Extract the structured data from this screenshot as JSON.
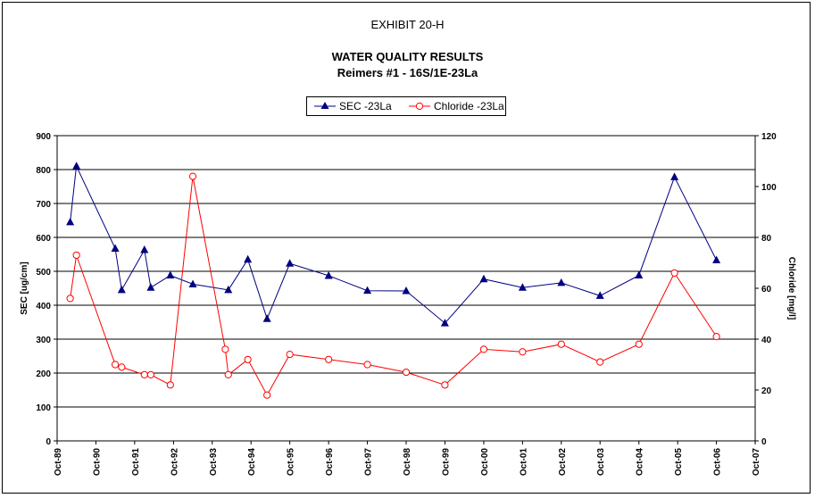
{
  "header": {
    "exhibit": "EXHIBIT 20-H",
    "title_line1": "WATER QUALITY RESULTS",
    "title_line2": "Reimers #1 - 16S/1E-23La"
  },
  "colors": {
    "sec": "#000080",
    "chloride": "#ff0000",
    "grid": "#000000"
  },
  "chart_data": {
    "type": "line",
    "legend_position": "top-center",
    "grid": "horizontal major gridlines",
    "x_axis": {
      "type": "date",
      "min": "1989-10-01",
      "max": "2007-10-01",
      "tick_labels": [
        "Oct-89",
        "Oct-90",
        "Oct-91",
        "Oct-92",
        "Oct-93",
        "Oct-94",
        "Oct-95",
        "Oct-96",
        "Oct-97",
        "Oct-98",
        "Oct-99",
        "Oct-00",
        "Oct-01",
        "Oct-02",
        "Oct-03",
        "Oct-04",
        "Oct-05",
        "Oct-06",
        "Oct-07"
      ]
    },
    "y_axis_left": {
      "label": "SEC [ug/cm]",
      "min": 0,
      "max": 900,
      "ticks": [
        0,
        100,
        200,
        300,
        400,
        500,
        600,
        700,
        800,
        900
      ]
    },
    "y_axis_right": {
      "label": "Chloride [mg/l]",
      "min": 0,
      "max": 120,
      "ticks": [
        0,
        20,
        40,
        60,
        80,
        100,
        120
      ]
    },
    "series": [
      {
        "name": "SEC -23La",
        "axis": "left",
        "marker": "triangle",
        "points": [
          {
            "x": "1990-02-01",
            "y": 645
          },
          {
            "x": "1990-04-01",
            "y": 810
          },
          {
            "x": "1991-04-01",
            "y": 567
          },
          {
            "x": "1991-06-01",
            "y": 445
          },
          {
            "x": "1992-01-01",
            "y": 563
          },
          {
            "x": "1992-03-01",
            "y": 452
          },
          {
            "x": "1992-09-01",
            "y": 488
          },
          {
            "x": "1993-04-01",
            "y": 462
          },
          {
            "x": "1994-03-01",
            "y": 445
          },
          {
            "x": "1994-09-01",
            "y": 535
          },
          {
            "x": "1995-03-01",
            "y": 360
          },
          {
            "x": "1995-10-01",
            "y": 523
          },
          {
            "x": "1996-10-01",
            "y": 487
          },
          {
            "x": "1997-10-01",
            "y": 443
          },
          {
            "x": "1998-10-01",
            "y": 442
          },
          {
            "x": "1999-10-01",
            "y": 347
          },
          {
            "x": "2000-10-01",
            "y": 477
          },
          {
            "x": "2001-10-01",
            "y": 452
          },
          {
            "x": "2002-10-01",
            "y": 466
          },
          {
            "x": "2003-10-01",
            "y": 428
          },
          {
            "x": "2004-10-01",
            "y": 488
          },
          {
            "x": "2005-09-01",
            "y": 778
          },
          {
            "x": "2006-10-01",
            "y": 533
          }
        ]
      },
      {
        "name": "Chloride -23La",
        "axis": "right",
        "marker": "circle",
        "points": [
          {
            "x": "1990-02-01",
            "y": 56
          },
          {
            "x": "1990-04-01",
            "y": 73
          },
          {
            "x": "1991-04-01",
            "y": 30
          },
          {
            "x": "1991-06-01",
            "y": 29
          },
          {
            "x": "1992-01-01",
            "y": 26
          },
          {
            "x": "1992-03-01",
            "y": 26
          },
          {
            "x": "1992-09-01",
            "y": 22
          },
          {
            "x": "1993-04-01",
            "y": 104
          },
          {
            "x": "1994-02-01",
            "y": 36
          },
          {
            "x": "1994-03-01",
            "y": 26
          },
          {
            "x": "1994-09-01",
            "y": 32
          },
          {
            "x": "1995-03-01",
            "y": 18
          },
          {
            "x": "1995-10-01",
            "y": 34
          },
          {
            "x": "1996-10-01",
            "y": 32
          },
          {
            "x": "1997-10-01",
            "y": 30
          },
          {
            "x": "1998-10-01",
            "y": 27
          },
          {
            "x": "1999-10-01",
            "y": 22
          },
          {
            "x": "2000-10-01",
            "y": 36
          },
          {
            "x": "2001-10-01",
            "y": 35
          },
          {
            "x": "2002-10-01",
            "y": 38
          },
          {
            "x": "2003-10-01",
            "y": 31
          },
          {
            "x": "2004-10-01",
            "y": 38
          },
          {
            "x": "2005-09-01",
            "y": 66
          },
          {
            "x": "2006-10-01",
            "y": 41
          }
        ]
      }
    ]
  }
}
